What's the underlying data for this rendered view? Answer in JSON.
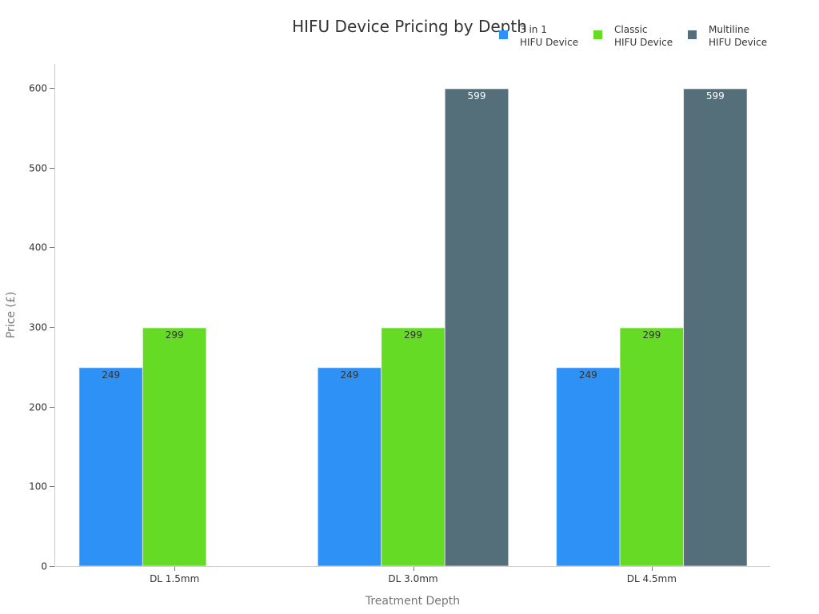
{
  "chart_data": {
    "type": "bar",
    "title": "HIFU Device Pricing by Depth",
    "xlabel": "Treatment Depth",
    "ylabel": "Price (£)",
    "ylim": [
      0,
      600
    ],
    "yticks": [
      0,
      100,
      200,
      300,
      400,
      500,
      600
    ],
    "grid": false,
    "legend_position": "top-right",
    "categories": [
      "DL 1.5mm",
      "DL 3.0mm",
      "DL 4.5mm"
    ],
    "series": [
      {
        "name": "3 in 1 HIFU Device",
        "label_lines": [
          "3 in 1",
          "HIFU Device"
        ],
        "color": "#2e91f5",
        "label_color": "#333333",
        "values": [
          249,
          249,
          249
        ]
      },
      {
        "name": "Classic HIFU Device",
        "label_lines": [
          "Classic",
          "HIFU Device"
        ],
        "color": "#66db26",
        "label_color": "#333333",
        "values": [
          299,
          299,
          299
        ]
      },
      {
        "name": "Multiline HIFU Device",
        "label_lines": [
          "Multiline",
          "HIFU Device"
        ],
        "color": "#546e7a",
        "label_color": "#ffffff",
        "values": [
          null,
          599,
          599
        ]
      }
    ]
  }
}
